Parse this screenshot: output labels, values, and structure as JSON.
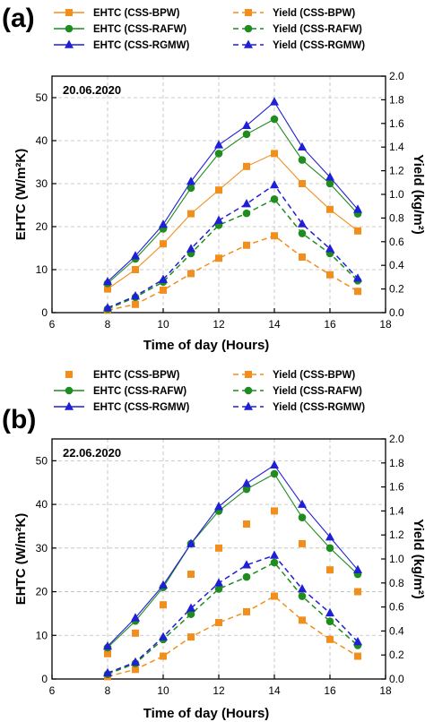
{
  "chart_data": [
    {
      "type": "line",
      "panel_label": "(a)",
      "annotation": "20.06.2020",
      "xlabel": "Time of day (Hours)",
      "ylabel_left": "EHTC (W/m²K)",
      "ylabel_right": "Yield (kg/m²)",
      "xlim": [
        6,
        18
      ],
      "ylim_left": [
        0,
        55
      ],
      "ylim_right": [
        0,
        2.0
      ],
      "x_ticks": [
        6,
        8,
        10,
        12,
        14,
        16,
        18
      ],
      "y_ticks_left": [
        0,
        10,
        20,
        30,
        40,
        50
      ],
      "y_ticks_right": [
        0.0,
        0.2,
        0.4,
        0.6,
        0.8,
        1.0,
        1.2,
        1.4,
        1.6,
        1.8,
        2.0
      ],
      "grid": true,
      "legend_position": "top",
      "x": [
        8,
        9,
        10,
        11,
        12,
        13,
        14,
        15,
        16,
        17
      ],
      "series": [
        {
          "name": "EHTC (CSS-BPW)",
          "axis": "left",
          "style": "solid",
          "marker": "square",
          "color": "#F28E1C",
          "values": [
            5.5,
            10,
            16,
            23,
            28.5,
            34,
            37,
            30,
            24,
            19
          ]
        },
        {
          "name": "EHTC (CSS-RAFW)",
          "axis": "left",
          "style": "solid",
          "marker": "circle",
          "color": "#1E8C1E",
          "values": [
            6.8,
            12.5,
            19.5,
            29,
            37,
            41.5,
            45,
            35.5,
            30,
            23
          ]
        },
        {
          "name": "EHTC (CSS-RGMW)",
          "axis": "left",
          "style": "solid",
          "marker": "triangle",
          "color": "#1F1FD6",
          "values": [
            7.2,
            13.2,
            20.5,
            30.5,
            39,
            43.5,
            49,
            38.5,
            31.5,
            24
          ]
        },
        {
          "name": "Yield (CSS-BPW)",
          "axis": "right",
          "style": "dashed",
          "marker": "square",
          "color": "#F28E1C",
          "values": [
            0.02,
            0.07,
            0.19,
            0.33,
            0.46,
            0.57,
            0.65,
            0.47,
            0.32,
            0.18
          ]
        },
        {
          "name": "Yield (CSS-RAFW)",
          "axis": "right",
          "style": "dashed",
          "marker": "circle",
          "color": "#1E8C1E",
          "values": [
            0.03,
            0.13,
            0.26,
            0.5,
            0.74,
            0.84,
            0.96,
            0.67,
            0.5,
            0.27
          ]
        },
        {
          "name": "Yield (CSS-RGMW)",
          "axis": "right",
          "style": "dashed",
          "marker": "triangle",
          "color": "#1F1FD6",
          "values": [
            0.04,
            0.14,
            0.28,
            0.54,
            0.78,
            0.92,
            1.08,
            0.75,
            0.54,
            0.29
          ]
        }
      ]
    },
    {
      "type": "line",
      "panel_label": "(b)",
      "annotation": "22.06.2020",
      "xlabel": "Time of day (Hours)",
      "ylabel_left": "EHTC (W/m²K)",
      "ylabel_right": "Yield (kg/m²)",
      "xlim": [
        6,
        18
      ],
      "ylim_left": [
        0,
        55
      ],
      "ylim_right": [
        0,
        2.0
      ],
      "x_ticks": [
        6,
        8,
        10,
        12,
        14,
        16,
        18
      ],
      "y_ticks_left": [
        0,
        10,
        20,
        30,
        40,
        50
      ],
      "y_ticks_right": [
        0.0,
        0.2,
        0.4,
        0.6,
        0.8,
        1.0,
        1.2,
        1.4,
        1.6,
        1.8,
        2.0
      ],
      "grid": true,
      "legend_position": "top",
      "x": [
        8,
        9,
        10,
        11,
        12,
        13,
        14,
        15,
        16,
        17
      ],
      "series": [
        {
          "name": "EHTC (CSS-BPW)",
          "axis": "left",
          "style": "none",
          "marker": "square",
          "color": "#F28E1C",
          "values": [
            5.8,
            10.5,
            17,
            24,
            30,
            35.5,
            38.5,
            31,
            25,
            20
          ]
        },
        {
          "name": "EHTC (CSS-RAFW)",
          "axis": "left",
          "style": "solid",
          "marker": "circle",
          "color": "#1E8C1E",
          "values": [
            7.2,
            13.3,
            21,
            31,
            38.5,
            43.5,
            47,
            37,
            30,
            24
          ]
        },
        {
          "name": "EHTC (CSS-RGMW)",
          "axis": "left",
          "style": "solid",
          "marker": "triangle",
          "color": "#1F1FD6",
          "values": [
            7.5,
            14,
            21.5,
            31,
            39.5,
            44.8,
            49,
            40,
            32.5,
            25
          ]
        },
        {
          "name": "Yield (CSS-BPW)",
          "axis": "right",
          "style": "dashed",
          "marker": "square",
          "color": "#F28E1C",
          "values": [
            0.02,
            0.08,
            0.19,
            0.35,
            0.47,
            0.56,
            0.69,
            0.49,
            0.33,
            0.19
          ]
        },
        {
          "name": "Yield (CSS-RAFW)",
          "axis": "right",
          "style": "dashed",
          "marker": "circle",
          "color": "#1E8C1E",
          "values": [
            0.04,
            0.13,
            0.33,
            0.54,
            0.75,
            0.85,
            0.97,
            0.69,
            0.48,
            0.28
          ]
        },
        {
          "name": "Yield (CSS-RGMW)",
          "axis": "right",
          "style": "dashed",
          "marker": "triangle",
          "color": "#1F1FD6",
          "values": [
            0.05,
            0.14,
            0.35,
            0.59,
            0.8,
            0.95,
            1.03,
            0.75,
            0.55,
            0.31
          ]
        }
      ]
    }
  ]
}
